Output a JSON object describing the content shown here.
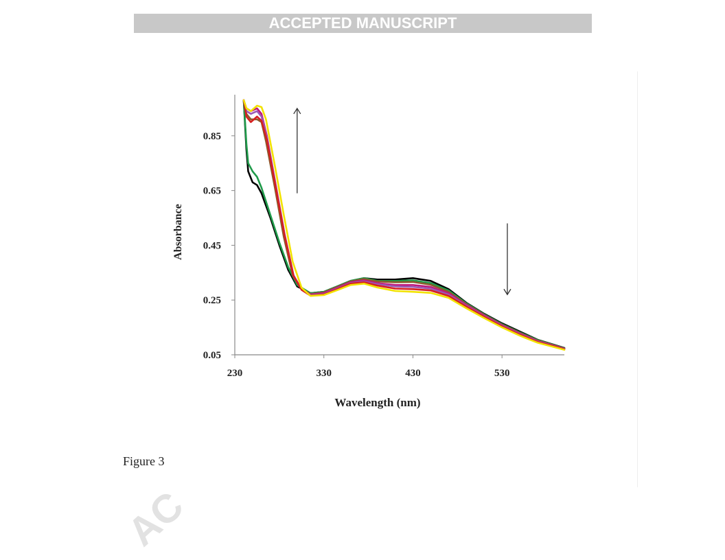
{
  "header": {
    "banner_text": "ACCEPTED MANUSCRIPT"
  },
  "figure": {
    "caption": "Figure 3"
  },
  "watermark": {
    "text": "AC"
  },
  "colors": {
    "banner_bg": "#c8c8c8",
    "arrow": "#333333",
    "series": [
      "#000000",
      "#1f9a4a",
      "#8b5a2b",
      "#c0187a",
      "#9b59b6",
      "#d62020",
      "#f2e200"
    ]
  },
  "chart_data": {
    "type": "line",
    "xlabel": "Wavelength (nm)",
    "ylabel": "Absorbance",
    "xlim": [
      230,
      600
    ],
    "ylim": [
      0.05,
      1.0
    ],
    "xticks": [
      230,
      330,
      430,
      530
    ],
    "yticks": [
      0.05,
      0.25,
      0.45,
      0.65,
      0.85
    ],
    "xtick_labels": [
      "230",
      "330",
      "430",
      "530"
    ],
    "ytick_labels": [
      "0.05",
      "0.25",
      "0.45",
      "0.65",
      "0.85"
    ],
    "grid": false,
    "legend": "none",
    "annotations": [
      {
        "type": "arrow",
        "direction": "up",
        "x": 300,
        "y_from": 0.64,
        "y_to": 0.95
      },
      {
        "type": "arrow",
        "direction": "down",
        "x": 536,
        "y_from": 0.53,
        "y_to": 0.27
      }
    ],
    "series": [
      {
        "color": "#000000",
        "points": [
          [
            240,
            0.98
          ],
          [
            243,
            0.8
          ],
          [
            245,
            0.72
          ],
          [
            250,
            0.68
          ],
          [
            255,
            0.67
          ],
          [
            260,
            0.64
          ],
          [
            270,
            0.55
          ],
          [
            280,
            0.45
          ],
          [
            290,
            0.36
          ],
          [
            300,
            0.3
          ],
          [
            315,
            0.275
          ],
          [
            330,
            0.28
          ],
          [
            345,
            0.3
          ],
          [
            360,
            0.32
          ],
          [
            375,
            0.33
          ],
          [
            390,
            0.325
          ],
          [
            410,
            0.325
          ],
          [
            430,
            0.33
          ],
          [
            450,
            0.32
          ],
          [
            470,
            0.29
          ],
          [
            490,
            0.24
          ],
          [
            510,
            0.2
          ],
          [
            530,
            0.165
          ],
          [
            550,
            0.135
          ],
          [
            570,
            0.105
          ],
          [
            590,
            0.085
          ],
          [
            600,
            0.075
          ]
        ]
      },
      {
        "color": "#1f9a4a",
        "points": [
          [
            240,
            0.98
          ],
          [
            243,
            0.82
          ],
          [
            245,
            0.75
          ],
          [
            250,
            0.72
          ],
          [
            255,
            0.7
          ],
          [
            260,
            0.66
          ],
          [
            270,
            0.56
          ],
          [
            280,
            0.46
          ],
          [
            290,
            0.37
          ],
          [
            300,
            0.305
          ],
          [
            315,
            0.275
          ],
          [
            330,
            0.28
          ],
          [
            345,
            0.3
          ],
          [
            360,
            0.32
          ],
          [
            375,
            0.33
          ],
          [
            390,
            0.32
          ],
          [
            410,
            0.32
          ],
          [
            430,
            0.322
          ],
          [
            450,
            0.312
          ],
          [
            470,
            0.285
          ],
          [
            490,
            0.238
          ],
          [
            510,
            0.198
          ],
          [
            530,
            0.162
          ],
          [
            550,
            0.132
          ],
          [
            570,
            0.104
          ],
          [
            590,
            0.084
          ],
          [
            600,
            0.074
          ]
        ]
      },
      {
        "color": "#8b5a2b",
        "points": [
          [
            240,
            0.98
          ],
          [
            243,
            0.93
          ],
          [
            248,
            0.91
          ],
          [
            255,
            0.91
          ],
          [
            260,
            0.9
          ],
          [
            265,
            0.83
          ],
          [
            275,
            0.66
          ],
          [
            285,
            0.48
          ],
          [
            295,
            0.34
          ],
          [
            305,
            0.29
          ],
          [
            315,
            0.272
          ],
          [
            330,
            0.278
          ],
          [
            345,
            0.298
          ],
          [
            360,
            0.318
          ],
          [
            375,
            0.327
          ],
          [
            390,
            0.318
          ],
          [
            410,
            0.315
          ],
          [
            430,
            0.316
          ],
          [
            450,
            0.306
          ],
          [
            470,
            0.28
          ],
          [
            490,
            0.235
          ],
          [
            510,
            0.196
          ],
          [
            530,
            0.16
          ],
          [
            550,
            0.13
          ],
          [
            570,
            0.102
          ],
          [
            590,
            0.083
          ],
          [
            600,
            0.073
          ]
        ]
      },
      {
        "color": "#c0187a",
        "points": [
          [
            240,
            0.98
          ],
          [
            243,
            0.95
          ],
          [
            248,
            0.94
          ],
          [
            255,
            0.95
          ],
          [
            260,
            0.93
          ],
          [
            266,
            0.85
          ],
          [
            276,
            0.67
          ],
          [
            286,
            0.49
          ],
          [
            296,
            0.34
          ],
          [
            305,
            0.29
          ],
          [
            315,
            0.27
          ],
          [
            330,
            0.275
          ],
          [
            345,
            0.295
          ],
          [
            360,
            0.315
          ],
          [
            375,
            0.322
          ],
          [
            390,
            0.312
          ],
          [
            410,
            0.305
          ],
          [
            430,
            0.305
          ],
          [
            450,
            0.298
          ],
          [
            470,
            0.275
          ],
          [
            490,
            0.232
          ],
          [
            510,
            0.194
          ],
          [
            530,
            0.158
          ],
          [
            550,
            0.128
          ],
          [
            570,
            0.1
          ],
          [
            590,
            0.082
          ],
          [
            600,
            0.072
          ]
        ]
      },
      {
        "color": "#9b59b6",
        "points": [
          [
            240,
            0.98
          ],
          [
            243,
            0.94
          ],
          [
            248,
            0.93
          ],
          [
            255,
            0.94
          ],
          [
            260,
            0.92
          ],
          [
            266,
            0.845
          ],
          [
            276,
            0.665
          ],
          [
            286,
            0.487
          ],
          [
            296,
            0.338
          ],
          [
            305,
            0.288
          ],
          [
            315,
            0.268
          ],
          [
            330,
            0.272
          ],
          [
            345,
            0.292
          ],
          [
            360,
            0.312
          ],
          [
            375,
            0.318
          ],
          [
            390,
            0.308
          ],
          [
            410,
            0.3
          ],
          [
            430,
            0.298
          ],
          [
            450,
            0.292
          ],
          [
            470,
            0.27
          ],
          [
            490,
            0.229
          ],
          [
            510,
            0.191
          ],
          [
            530,
            0.156
          ],
          [
            550,
            0.126
          ],
          [
            570,
            0.099
          ],
          [
            590,
            0.081
          ],
          [
            600,
            0.071
          ]
        ]
      },
      {
        "color": "#d62020",
        "points": [
          [
            240,
            0.98
          ],
          [
            243,
            0.92
          ],
          [
            248,
            0.9
          ],
          [
            255,
            0.92
          ],
          [
            260,
            0.905
          ],
          [
            266,
            0.835
          ],
          [
            276,
            0.66
          ],
          [
            286,
            0.485
          ],
          [
            296,
            0.337
          ],
          [
            305,
            0.287
          ],
          [
            315,
            0.266
          ],
          [
            330,
            0.27
          ],
          [
            345,
            0.29
          ],
          [
            360,
            0.31
          ],
          [
            375,
            0.315
          ],
          [
            390,
            0.303
          ],
          [
            410,
            0.292
          ],
          [
            430,
            0.29
          ],
          [
            450,
            0.285
          ],
          [
            470,
            0.265
          ],
          [
            490,
            0.226
          ],
          [
            510,
            0.189
          ],
          [
            530,
            0.154
          ],
          [
            550,
            0.124
          ],
          [
            570,
            0.097
          ],
          [
            590,
            0.08
          ],
          [
            600,
            0.07
          ]
        ]
      },
      {
        "color": "#f2e200",
        "points": [
          [
            240,
            0.98
          ],
          [
            243,
            0.95
          ],
          [
            248,
            0.94
          ],
          [
            255,
            0.96
          ],
          [
            260,
            0.955
          ],
          [
            265,
            0.91
          ],
          [
            275,
            0.74
          ],
          [
            285,
            0.56
          ],
          [
            295,
            0.39
          ],
          [
            305,
            0.295
          ],
          [
            315,
            0.265
          ],
          [
            330,
            0.268
          ],
          [
            345,
            0.286
          ],
          [
            360,
            0.305
          ],
          [
            375,
            0.31
          ],
          [
            390,
            0.296
          ],
          [
            410,
            0.283
          ],
          [
            430,
            0.28
          ],
          [
            450,
            0.276
          ],
          [
            470,
            0.258
          ],
          [
            490,
            0.22
          ],
          [
            510,
            0.184
          ],
          [
            530,
            0.15
          ],
          [
            550,
            0.12
          ],
          [
            570,
            0.094
          ],
          [
            590,
            0.077
          ],
          [
            600,
            0.068
          ]
        ]
      }
    ]
  }
}
